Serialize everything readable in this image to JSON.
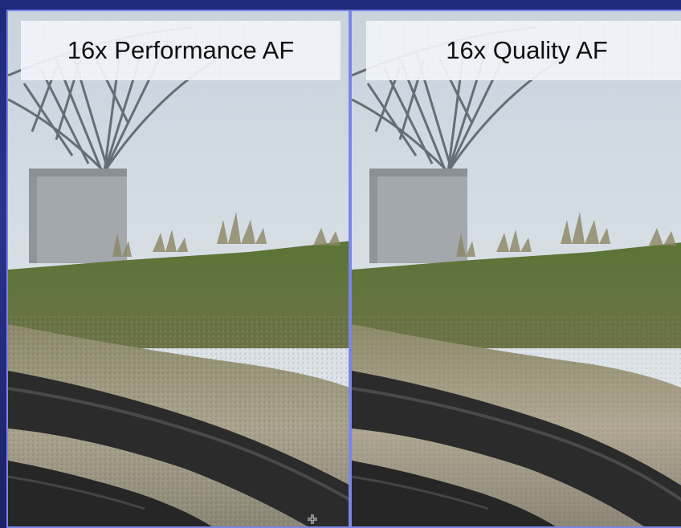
{
  "panels": {
    "left": {
      "label": "16x Performance AF"
    },
    "right": {
      "label": "16x Quality AF"
    }
  },
  "colors": {
    "sky": "#d6dde3",
    "grass": "#4e6a2e",
    "dirt": "#a09a86",
    "pipe": "#2a2a2a",
    "concrete": "#a7acb0",
    "divider": "#7a86e6"
  },
  "icons": {
    "cursor": "crosshair-cursor-icon"
  }
}
